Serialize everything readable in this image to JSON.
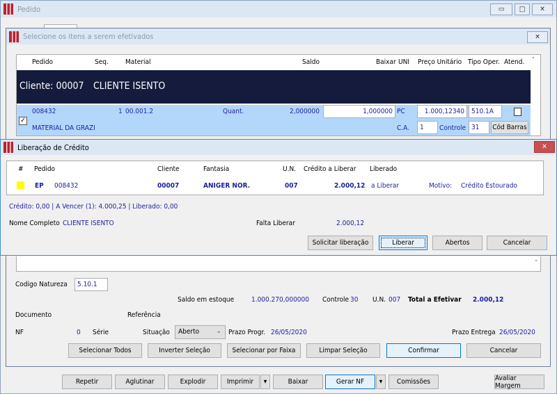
{
  "main": {
    "title": "Pedido",
    "buttons": [
      "Repetir",
      "Aglutinar",
      "Explodir",
      "Imprimir",
      "Baixar",
      "Gerar NF",
      "Comissões",
      "Avaliar Margem"
    ]
  },
  "select": {
    "title": "Selecione os itens a serem efetivados",
    "columns": [
      "Pedido",
      "Seq.",
      "Material",
      "Saldo",
      "Baixar",
      "UNI",
      "Preço Unitário",
      "Tipo Oper.",
      "Atend."
    ],
    "group": {
      "label": "Cliente: 00007",
      "name": "CLIENTE ISENTO"
    },
    "row": {
      "pedido": "008432",
      "seq": "1",
      "material": "00.001.2",
      "quant_label": "Quant.",
      "saldo": "2,000000",
      "baixar": "1,000000",
      "uni": "PC",
      "preco": "1.000,12340",
      "tipo": "510.1A",
      "descricao": "MATERIAL DA GRAZI",
      "ca_label": "C.A.",
      "ca": "1",
      "controle_label": "Controle",
      "controle": "31",
      "cod_barras": "Cód Barras",
      "checked": true,
      "atend": false
    },
    "codigo_natureza_label": "Codigo Natureza",
    "codigo_natureza": "5.10.1",
    "saldo_estoque_label": "Saldo em estoque",
    "saldo_estoque": "1.000.270,000000",
    "controle_label": "Controle",
    "controle": "30",
    "un_label": "U.N.",
    "un": "007",
    "total_label": "Total a Efetivar",
    "total": "2.000,12",
    "documento_label": "Documento",
    "referencia_label": "Referência",
    "nf_label": "NF",
    "nf": "0",
    "serie_label": "Série",
    "situacao_label": "Situação",
    "situacao": "Aberto",
    "prazo_progr_label": "Prazo Progr.",
    "prazo_progr": "26/05/2020",
    "prazo_entrega_label": "Prazo Entrega",
    "prazo_entrega": "26/05/2020",
    "buttons": {
      "todos": "Selecionar Todos",
      "inverter": "Inverter Seleção",
      "faixa": "Selecionar por Faixa",
      "limpar": "Limpar Seleção",
      "confirmar": "Confirmar",
      "cancelar": "Cancelar"
    }
  },
  "credit": {
    "title": "Liberação de Crédito",
    "columns": [
      "#",
      "Pedido",
      "Cliente",
      "Fantasia",
      "U.N.",
      "Crédito a Liberar",
      "Liberado"
    ],
    "row": {
      "status_color": "#ffff00",
      "tipo": "EP",
      "pedido": "008432",
      "cliente": "00007",
      "fantasia": "ANIGER NOR.",
      "un": "007",
      "credito": "2.000,12",
      "liberado": "a Liberar",
      "motivo_label": "Motivo:",
      "motivo": "Crédito Estourado"
    },
    "summary": "Crédito: 0,00 | A Vencer (1): 4.000,25 | Liberado: 0,00",
    "nome_label": "Nome Completo",
    "nome": "CLIENTE ISENTO",
    "falta_label": "Falta Liberar",
    "falta": "2.000,12",
    "buttons": {
      "solicitar": "Solicitar liberação",
      "liberar": "Liberar",
      "abertos": "Abertos",
      "cancelar": "Cancelar"
    }
  }
}
